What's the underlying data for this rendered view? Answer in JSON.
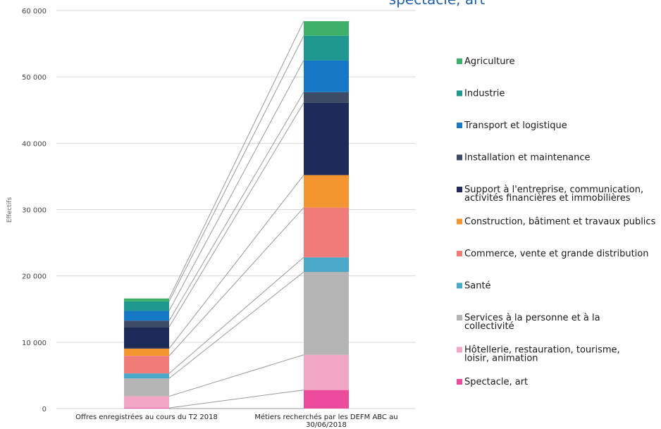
{
  "chart_data": {
    "type": "bar",
    "stacked": true,
    "title": "spectacle, art",
    "ylabel": "Effectifs",
    "xlabel": "",
    "ylim": [
      0,
      60000
    ],
    "yticks": [
      0,
      10000,
      20000,
      30000,
      40000,
      50000,
      60000
    ],
    "ytick_labels": [
      "0",
      "10 000",
      "20 000",
      "30 000",
      "40 000",
      "50 000",
      "60 000"
    ],
    "grid": true,
    "legend_position": "right",
    "connector_lines": true,
    "categories": [
      "Offres enregistrées au cours du T2 2018",
      "Métiers recherchés par les DEFM ABC au 30/06/2018"
    ],
    "series": [
      {
        "name": "Spectacle, art",
        "color": "#ea4b9b",
        "values": [
          100,
          2800
        ]
      },
      {
        "name": "Hôtellerie, restauration, tourisme, loisir, animation",
        "color": "#f2a6c6",
        "values": [
          1750,
          5300
        ]
      },
      {
        "name": "Services à la personne et à la collectivité",
        "color": "#b5b5b5",
        "values": [
          2700,
          12500
        ]
      },
      {
        "name": "Santé",
        "color": "#4aa8c9",
        "values": [
          750,
          2200
        ]
      },
      {
        "name": "Commerce, vente et grande distribution",
        "color": "#f07c7a",
        "values": [
          2650,
          7500
        ]
      },
      {
        "name": "Construction, bâtiment et travaux publics",
        "color": "#f4962f",
        "values": [
          1100,
          4900
        ]
      },
      {
        "name": "Support à l'entreprise, communication, activités financières et immobilières",
        "color": "#1c2b57",
        "values": [
          3250,
          10900
        ]
      },
      {
        "name": "Installation et maintenance",
        "color": "#3d4b66",
        "values": [
          950,
          1600
        ]
      },
      {
        "name": "Transport et logistique",
        "color": "#1677c4",
        "values": [
          1500,
          4800
        ]
      },
      {
        "name": "Industrie",
        "color": "#1f9890",
        "values": [
          1400,
          3700
        ]
      },
      {
        "name": "Agriculture",
        "color": "#3fb06a",
        "values": [
          450,
          2200
        ]
      }
    ],
    "legend_order": [
      "Agriculture",
      "Industrie",
      "Transport et logistique",
      "Installation et maintenance",
      "Support à l'entreprise, communication, activités financières et immobilières",
      "Construction, bâtiment et travaux publics",
      "Commerce, vente et grande distribution",
      "Santé",
      "Services à la personne et à la collectivité",
      "Hôtellerie, restauration, tourisme, loisir, animation",
      "Spectacle, art"
    ]
  }
}
